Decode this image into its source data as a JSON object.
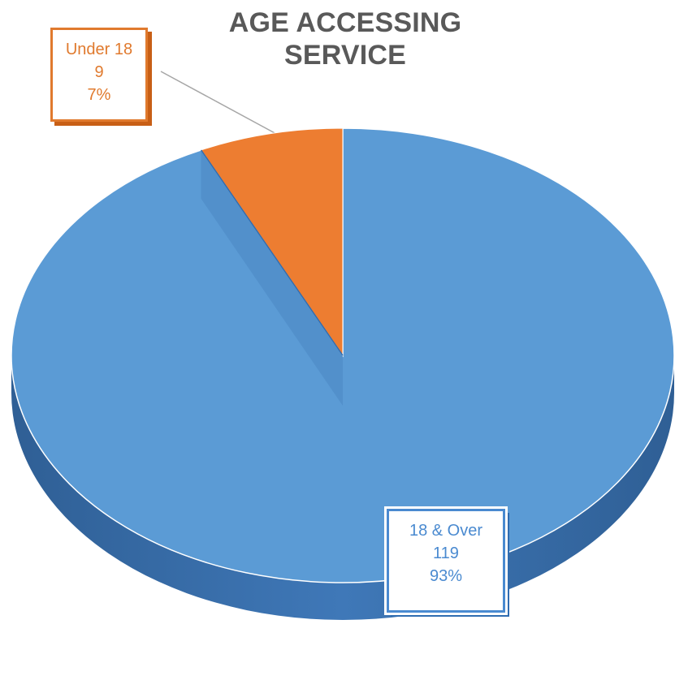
{
  "chart_data": {
    "type": "pie",
    "title": "AGE ACCESSING SERVICE",
    "slices": [
      {
        "label": "18 & Over",
        "value": 119,
        "percent": "93%",
        "color": "#5b9bd5"
      },
      {
        "label": "Under 18",
        "value": 9,
        "percent": "7%",
        "color": "#ed7d31"
      }
    ],
    "style": "3d-exploded"
  }
}
